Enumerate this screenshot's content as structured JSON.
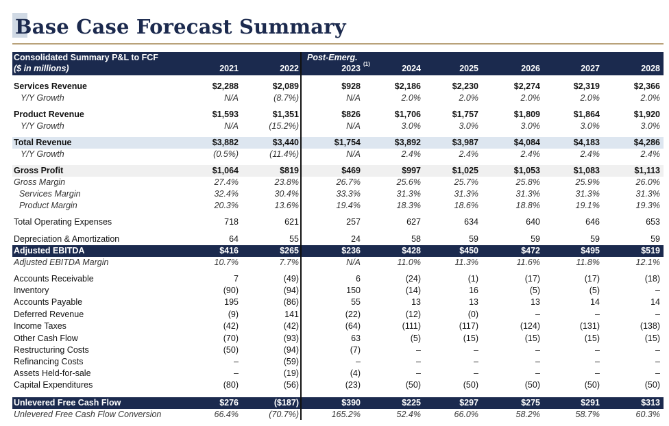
{
  "title": "Base Case Forecast Summary",
  "header": {
    "line1": "Consolidated Summary P&L to FCF",
    "line2": "($ in millions)",
    "post_emerg": "Post-Emerg.",
    "footnote": "(1)",
    "years": [
      "2021",
      "2022",
      "2023",
      "2024",
      "2025",
      "2026",
      "2027",
      "2028"
    ]
  },
  "rows": [
    {
      "label": "Services Revenue",
      "style": "bold",
      "values": [
        "$2,288",
        "$2,089",
        "$928",
        "$2,186",
        "$2,230",
        "$2,274",
        "$2,319",
        "$2,366"
      ]
    },
    {
      "label": "Y/Y Growth",
      "style": "sub",
      "values": [
        "N/A",
        "(8.7%)",
        "N/A",
        "2.0%",
        "2.0%",
        "2.0%",
        "2.0%",
        "2.0%"
      ]
    },
    {
      "label": "Product Revenue",
      "style": "bold",
      "values": [
        "$1,593",
        "$1,351",
        "$826",
        "$1,706",
        "$1,757",
        "$1,809",
        "$1,864",
        "$1,920"
      ]
    },
    {
      "label": "Y/Y Growth",
      "style": "sub",
      "values": [
        "N/A",
        "(15.2%)",
        "N/A",
        "3.0%",
        "3.0%",
        "3.0%",
        "3.0%",
        "3.0%"
      ]
    },
    {
      "label": "Total Revenue",
      "style": "bold shade",
      "values": [
        "$3,882",
        "$3,440",
        "$1,754",
        "$3,892",
        "$3,987",
        "$4,084",
        "$4,183",
        "$4,286"
      ]
    },
    {
      "label": "Y/Y Growth",
      "style": "sub",
      "values": [
        "(0.5%)",
        "(11.4%)",
        "N/A",
        "2.4%",
        "2.4%",
        "2.4%",
        "2.4%",
        "2.4%"
      ]
    },
    {
      "label": "Gross Profit",
      "style": "bold gray",
      "values": [
        "$1,064",
        "$819",
        "$469",
        "$997",
        "$1,025",
        "$1,053",
        "$1,083",
        "$1,113"
      ]
    },
    {
      "label": "Gross Margin",
      "style": "ital",
      "values": [
        "27.4%",
        "23.8%",
        "26.7%",
        "25.6%",
        "25.7%",
        "25.8%",
        "25.9%",
        "26.0%"
      ]
    },
    {
      "label": "Services Margin",
      "style": "sub sub2",
      "values": [
        "32.4%",
        "30.4%",
        "33.3%",
        "31.3%",
        "31.3%",
        "31.3%",
        "31.3%",
        "31.3%"
      ]
    },
    {
      "label": "Product Margin",
      "style": "sub sub2",
      "values": [
        "20.3%",
        "13.6%",
        "19.4%",
        "18.3%",
        "18.6%",
        "18.8%",
        "19.1%",
        "19.3%"
      ]
    },
    {
      "label": "Total Operating Expenses",
      "style": "",
      "values": [
        "718",
        "621",
        "257",
        "627",
        "634",
        "640",
        "646",
        "653"
      ]
    },
    {
      "label": "Depreciation & Amortization",
      "style": "",
      "values": [
        "64",
        "55",
        "24",
        "58",
        "59",
        "59",
        "59",
        "59"
      ]
    },
    {
      "label": "Adjusted EBITDA",
      "style": "dark",
      "values": [
        "$416",
        "$265",
        "$236",
        "$428",
        "$450",
        "$472",
        "$495",
        "$519"
      ]
    },
    {
      "label": "Adjusted EBITDA Margin",
      "style": "ital",
      "values": [
        "10.7%",
        "7.7%",
        "N/A",
        "11.0%",
        "11.3%",
        "11.6%",
        "11.8%",
        "12.1%"
      ]
    },
    {
      "label": "Accounts Receivable",
      "style": "",
      "values": [
        "7",
        "(49)",
        "6",
        "(24)",
        "(1)",
        "(17)",
        "(17)",
        "(18)"
      ]
    },
    {
      "label": "Inventory",
      "style": "",
      "values": [
        "(90)",
        "(94)",
        "150",
        "(14)",
        "16",
        "(5)",
        "(5)",
        "–"
      ]
    },
    {
      "label": "Accounts Payable",
      "style": "",
      "values": [
        "195",
        "(86)",
        "55",
        "13",
        "13",
        "13",
        "14",
        "14"
      ]
    },
    {
      "label": "Deferred Revenue",
      "style": "",
      "values": [
        "(9)",
        "141",
        "(22)",
        "(12)",
        "(0)",
        "–",
        "–",
        "–"
      ]
    },
    {
      "label": "Income Taxes",
      "style": "",
      "values": [
        "(42)",
        "(42)",
        "(64)",
        "(111)",
        "(117)",
        "(124)",
        "(131)",
        "(138)"
      ]
    },
    {
      "label": "Other Cash Flow",
      "style": "",
      "values": [
        "(70)",
        "(93)",
        "63",
        "(5)",
        "(15)",
        "(15)",
        "(15)",
        "(15)"
      ]
    },
    {
      "label": "Restructuring Costs",
      "style": "",
      "values": [
        "(50)",
        "(94)",
        "(7)",
        "–",
        "–",
        "–",
        "–",
        "–"
      ]
    },
    {
      "label": "Refinancing Costs",
      "style": "",
      "values": [
        "–",
        "(59)",
        "–",
        "–",
        "–",
        "–",
        "–",
        "–"
      ]
    },
    {
      "label": "Assets Held-for-sale",
      "style": "",
      "values": [
        "–",
        "(19)",
        "(4)",
        "–",
        "–",
        "–",
        "–",
        "–"
      ]
    },
    {
      "label": "Capital Expenditures",
      "style": "",
      "values": [
        "(80)",
        "(56)",
        "(23)",
        "(50)",
        "(50)",
        "(50)",
        "(50)",
        "(50)"
      ]
    },
    {
      "label": "Unlevered Free Cash Flow",
      "style": "dark",
      "values": [
        "$276",
        "($187)",
        "$390",
        "$225",
        "$297",
        "$275",
        "$291",
        "$313"
      ]
    },
    {
      "label": "Unlevered Free Cash Flow Conversion",
      "style": "ital",
      "values": [
        "66.4%",
        "(70.7%)",
        "165.2%",
        "52.4%",
        "66.0%",
        "58.2%",
        "58.7%",
        "60.3%"
      ]
    }
  ]
}
